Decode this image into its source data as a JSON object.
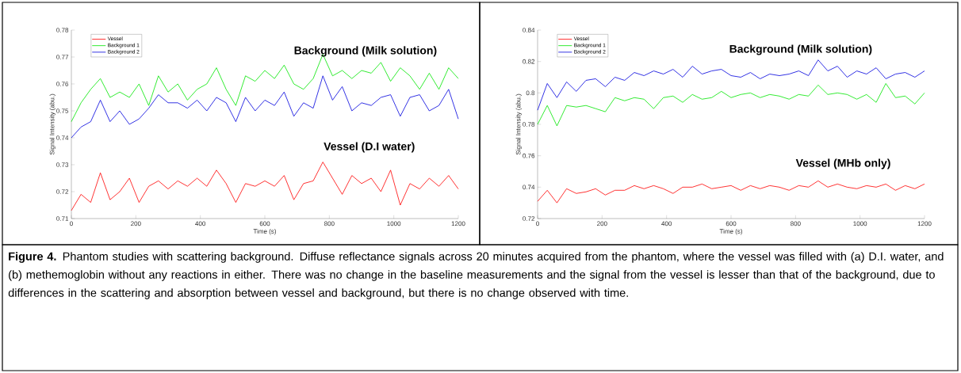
{
  "chart_data": [
    {
      "type": "line",
      "xlabel": "Time (s)",
      "ylabel": "Signal Intensity (abu.)",
      "xlim": [
        0,
        1200
      ],
      "xticks": [
        0,
        200,
        400,
        600,
        800,
        1000,
        1200
      ],
      "ylim": [
        0.71,
        0.78
      ],
      "yticks": [
        0.71,
        0.72,
        0.73,
        0.74,
        0.75,
        0.76,
        0.77,
        0.78
      ],
      "legend": "top left",
      "marker": "none",
      "line_style": "solid",
      "x": [
        0,
        30,
        60,
        90,
        120,
        150,
        180,
        210,
        240,
        270,
        300,
        330,
        360,
        390,
        420,
        450,
        480,
        510,
        540,
        570,
        600,
        630,
        660,
        690,
        720,
        750,
        780,
        810,
        840,
        870,
        900,
        930,
        960,
        990,
        1020,
        1050,
        1080,
        1110,
        1140,
        1170,
        1200
      ],
      "series": [
        {
          "name": "Vessel",
          "color": "#ff0000",
          "values": [
            0.713,
            0.719,
            0.716,
            0.727,
            0.717,
            0.72,
            0.725,
            0.716,
            0.722,
            0.724,
            0.721,
            0.724,
            0.722,
            0.725,
            0.722,
            0.728,
            0.723,
            0.716,
            0.723,
            0.722,
            0.724,
            0.722,
            0.726,
            0.717,
            0.723,
            0.724,
            0.731,
            0.725,
            0.719,
            0.726,
            0.723,
            0.725,
            0.72,
            0.728,
            0.715,
            0.723,
            0.721,
            0.725,
            0.722,
            0.726,
            0.721
          ]
        },
        {
          "name": "Background 1",
          "color": "#00e600",
          "values": [
            0.746,
            0.753,
            0.758,
            0.762,
            0.755,
            0.757,
            0.755,
            0.76,
            0.752,
            0.763,
            0.757,
            0.76,
            0.754,
            0.758,
            0.76,
            0.766,
            0.758,
            0.752,
            0.763,
            0.761,
            0.765,
            0.762,
            0.767,
            0.76,
            0.758,
            0.762,
            0.771,
            0.763,
            0.765,
            0.762,
            0.765,
            0.764,
            0.768,
            0.761,
            0.766,
            0.763,
            0.758,
            0.764,
            0.758,
            0.766,
            0.762
          ]
        },
        {
          "name": "Background 2",
          "color": "#0000dd",
          "values": [
            0.74,
            0.744,
            0.746,
            0.754,
            0.746,
            0.75,
            0.745,
            0.747,
            0.751,
            0.756,
            0.753,
            0.753,
            0.751,
            0.754,
            0.75,
            0.755,
            0.753,
            0.746,
            0.755,
            0.75,
            0.754,
            0.752,
            0.757,
            0.748,
            0.753,
            0.751,
            0.763,
            0.754,
            0.759,
            0.75,
            0.753,
            0.752,
            0.755,
            0.756,
            0.748,
            0.755,
            0.756,
            0.75,
            0.752,
            0.758,
            0.747
          ]
        }
      ],
      "annotations": [
        "Background  (Milk solution)",
        "Vessel (D.I water)",
        "**Figure 4.** Phantom studies with scattering background.  Diffuse reflectance signals across 20 minutes acquired from the phantom, where the vessel was filled with (a) D.I. water, and (b) methemoglobin without any reactions in either.  There was no change in the baseline measurements and the signal from the vessel is lesser than that of the background, due to differences in the scattering and absorption between vessel and background, but there is no change observed with time."
      ]
    },
    {
      "type": "line",
      "xlabel": "Time (s)",
      "ylabel": "Signal Intensity (abu.)",
      "xlim": [
        0,
        1200
      ],
      "xticks": [
        0,
        200,
        400,
        600,
        800,
        1000,
        1200
      ],
      "ylim": [
        0.72,
        0.84
      ],
      "yticks": [
        0.72,
        0.74,
        0.76,
        0.78,
        0.8,
        0.82,
        0.84
      ],
      "legend": "top left",
      "marker": "none",
      "line_style": "solid",
      "x": [
        0,
        30,
        60,
        90,
        120,
        150,
        180,
        210,
        240,
        270,
        300,
        330,
        360,
        390,
        420,
        450,
        480,
        510,
        540,
        570,
        600,
        630,
        660,
        690,
        720,
        750,
        780,
        810,
        840,
        870,
        900,
        930,
        960,
        990,
        1020,
        1050,
        1080,
        1110,
        1140,
        1170,
        1200
      ],
      "series": [
        {
          "name": "Vessel",
          "color": "#ff0000",
          "values": [
            0.731,
            0.738,
            0.73,
            0.739,
            0.736,
            0.737,
            0.739,
            0.735,
            0.738,
            0.738,
            0.741,
            0.739,
            0.741,
            0.739,
            0.736,
            0.74,
            0.74,
            0.742,
            0.739,
            0.74,
            0.741,
            0.738,
            0.741,
            0.739,
            0.741,
            0.74,
            0.738,
            0.741,
            0.74,
            0.744,
            0.74,
            0.742,
            0.74,
            0.739,
            0.741,
            0.74,
            0.742,
            0.738,
            0.741,
            0.739,
            0.742
          ]
        },
        {
          "name": "Background 1",
          "color": "#00e600",
          "values": [
            0.78,
            0.792,
            0.779,
            0.792,
            0.791,
            0.792,
            0.79,
            0.788,
            0.797,
            0.795,
            0.797,
            0.796,
            0.79,
            0.797,
            0.798,
            0.794,
            0.799,
            0.796,
            0.797,
            0.801,
            0.797,
            0.799,
            0.8,
            0.797,
            0.799,
            0.798,
            0.796,
            0.799,
            0.798,
            0.805,
            0.799,
            0.8,
            0.799,
            0.796,
            0.799,
            0.794,
            0.806,
            0.797,
            0.798,
            0.793,
            0.8
          ]
        },
        {
          "name": "Background 2",
          "color": "#0000dd",
          "values": [
            0.789,
            0.806,
            0.797,
            0.807,
            0.801,
            0.808,
            0.809,
            0.804,
            0.81,
            0.808,
            0.813,
            0.811,
            0.814,
            0.812,
            0.815,
            0.81,
            0.817,
            0.812,
            0.814,
            0.815,
            0.811,
            0.81,
            0.813,
            0.809,
            0.812,
            0.811,
            0.812,
            0.814,
            0.811,
            0.821,
            0.814,
            0.817,
            0.81,
            0.814,
            0.812,
            0.816,
            0.809,
            0.812,
            0.813,
            0.81,
            0.814
          ]
        }
      ],
      "annotations": [
        "Background  (Milk solution)",
        "Vessel (MHb only)"
      ]
    }
  ]
}
